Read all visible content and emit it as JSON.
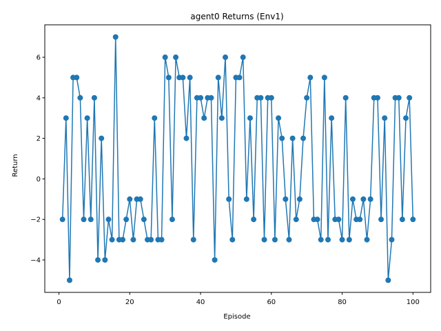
{
  "chart_data": {
    "type": "line",
    "title": "agent0 Returns (Env1)",
    "xlabel": "Episode",
    "ylabel": "Return",
    "xlim": [
      -4,
      105
    ],
    "ylim": [
      -5.6,
      7.6
    ],
    "xticks": [
      0,
      20,
      40,
      60,
      80,
      100
    ],
    "yticks": [
      -4,
      -2,
      0,
      2,
      4,
      6
    ],
    "grid": false,
    "marker": "circle",
    "colors": {
      "series": "#1f77b4",
      "axes": "#000000",
      "background": "#ffffff"
    },
    "series": [
      {
        "x": [
          1,
          2,
          3,
          4,
          5,
          6,
          7,
          8,
          9,
          10,
          11,
          12,
          13,
          14,
          15,
          16,
          17,
          18,
          19,
          20,
          21,
          22,
          23,
          24,
          25,
          26,
          27,
          28,
          29,
          30,
          31,
          32,
          33,
          34,
          35,
          36,
          37,
          38,
          39,
          40,
          41,
          42,
          43,
          44,
          45,
          46,
          47,
          48,
          49,
          50,
          51,
          52,
          53,
          54,
          55,
          56,
          57,
          58,
          59,
          60,
          61,
          62,
          63,
          64,
          65,
          66,
          67,
          68,
          69,
          70,
          71,
          72,
          73,
          74,
          75,
          76,
          77,
          78,
          79,
          80,
          81,
          82,
          83,
          84,
          85,
          86,
          87,
          88,
          89,
          90,
          91,
          92,
          93,
          94,
          95,
          96,
          97,
          98,
          99,
          100
        ],
        "values": [
          -2,
          3,
          -5,
          5,
          5,
          4,
          -2,
          3,
          -2,
          4,
          -4,
          2,
          -4,
          -2,
          -3,
          7,
          -3,
          -3,
          -2,
          -1,
          -3,
          -1,
          -1,
          -2,
          -3,
          -3,
          3,
          -3,
          -3,
          6,
          5,
          -2,
          6,
          5,
          5,
          2,
          5,
          -3,
          4,
          4,
          3,
          4,
          4,
          -4,
          5,
          3,
          6,
          -1,
          -3,
          5,
          5,
          6,
          -1,
          3,
          -2,
          4,
          4,
          -3,
          4,
          4,
          -3,
          3,
          2,
          -1,
          -3,
          2,
          -2,
          -1,
          2,
          4,
          5,
          -2,
          -2,
          -3,
          5,
          -3,
          3,
          -2,
          -2,
          -3,
          4,
          -3,
          -1,
          -2,
          -2,
          -1,
          -3,
          -1,
          4,
          4,
          -2,
          3,
          -5,
          -3,
          4,
          4,
          -2,
          3,
          4,
          -2
        ]
      }
    ]
  }
}
